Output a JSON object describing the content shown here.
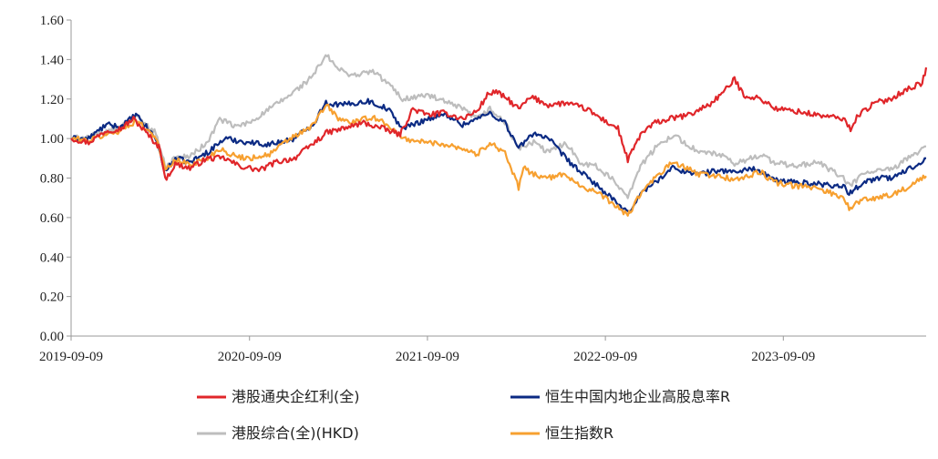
{
  "chart_data": {
    "type": "line",
    "title": "",
    "xlabel": "",
    "ylabel": "",
    "x_ticks": [
      "2019-09-09",
      "2020-09-09",
      "2021-09-09",
      "2022-09-09",
      "2023-09-09"
    ],
    "y_ticks": [
      "0.00",
      "0.20",
      "0.40",
      "0.60",
      "0.80",
      "1.00",
      "1.20",
      "1.40",
      "1.60"
    ],
    "xlim": [
      "2019-09-09",
      "2024-06-28"
    ],
    "ylim": [
      0,
      1.6
    ],
    "grid": false,
    "legend_position": "bottom",
    "series": [
      {
        "name": "港股通央企红利(全)",
        "color": "#e0262a",
        "points": [
          [
            "2019-09-09",
            1.0
          ],
          [
            "2019-10-15",
            0.98
          ],
          [
            "2019-11-20",
            1.04
          ],
          [
            "2019-12-20",
            1.05
          ],
          [
            "2020-01-15",
            1.1
          ],
          [
            "2020-02-10",
            1.03
          ],
          [
            "2020-03-10",
            0.95
          ],
          [
            "2020-03-20",
            0.79
          ],
          [
            "2020-04-10",
            0.87
          ],
          [
            "2020-05-10",
            0.85
          ],
          [
            "2020-06-15",
            0.9
          ],
          [
            "2020-07-20",
            0.9
          ],
          [
            "2020-08-20",
            0.86
          ],
          [
            "2020-10-01",
            0.84
          ],
          [
            "2020-11-01",
            0.88
          ],
          [
            "2020-12-10",
            0.9
          ],
          [
            "2021-01-10",
            0.96
          ],
          [
            "2021-02-15",
            1.03
          ],
          [
            "2021-03-20",
            1.05
          ],
          [
            "2021-05-01",
            1.08
          ],
          [
            "2021-06-10",
            1.05
          ],
          [
            "2021-07-15",
            1.02
          ],
          [
            "2021-08-10",
            1.15
          ],
          [
            "2021-09-09",
            1.12
          ],
          [
            "2021-10-15",
            1.13
          ],
          [
            "2021-11-20",
            1.1
          ],
          [
            "2021-12-20",
            1.14
          ],
          [
            "2022-01-10",
            1.22
          ],
          [
            "2022-01-25",
            1.24
          ],
          [
            "2022-02-20",
            1.2
          ],
          [
            "2022-03-15",
            1.15
          ],
          [
            "2022-04-10",
            1.21
          ],
          [
            "2022-05-15",
            1.17
          ],
          [
            "2022-06-20",
            1.18
          ],
          [
            "2022-08-01",
            1.15
          ],
          [
            "2022-09-01",
            1.1
          ],
          [
            "2022-10-05",
            1.05
          ],
          [
            "2022-10-25",
            0.89
          ],
          [
            "2022-11-20",
            1.02
          ],
          [
            "2022-12-20",
            1.08
          ],
          [
            "2023-01-20",
            1.1
          ],
          [
            "2023-03-01",
            1.12
          ],
          [
            "2023-04-15",
            1.18
          ],
          [
            "2023-05-15",
            1.25
          ],
          [
            "2023-06-01",
            1.3
          ],
          [
            "2023-06-20",
            1.22
          ],
          [
            "2023-07-25",
            1.2
          ],
          [
            "2023-08-25",
            1.15
          ],
          [
            "2023-10-01",
            1.14
          ],
          [
            "2023-11-15",
            1.12
          ],
          [
            "2024-01-10",
            1.1
          ],
          [
            "2024-01-25",
            1.05
          ],
          [
            "2024-02-10",
            1.12
          ],
          [
            "2024-03-15",
            1.18
          ],
          [
            "2024-04-15",
            1.2
          ],
          [
            "2024-05-20",
            1.25
          ],
          [
            "2024-06-20",
            1.28
          ],
          [
            "2024-06-28",
            1.36
          ]
        ]
      },
      {
        "name": "恒生中国内地企业高股息率R",
        "color": "#0b2a83",
        "points": [
          [
            "2019-09-09",
            1.0
          ],
          [
            "2019-10-15",
            1.0
          ],
          [
            "2019-11-20",
            1.07
          ],
          [
            "2019-12-20",
            1.06
          ],
          [
            "2020-01-20",
            1.12
          ],
          [
            "2020-02-10",
            1.06
          ],
          [
            "2020-03-01",
            1.0
          ],
          [
            "2020-03-20",
            0.83
          ],
          [
            "2020-04-10",
            0.9
          ],
          [
            "2020-05-10",
            0.88
          ],
          [
            "2020-06-15",
            0.93
          ],
          [
            "2020-07-20",
            1.0
          ],
          [
            "2020-09-09",
            0.98
          ],
          [
            "2020-10-20",
            0.97
          ],
          [
            "2020-12-10",
            1.0
          ],
          [
            "2021-01-20",
            1.08
          ],
          [
            "2021-02-10",
            1.18
          ],
          [
            "2021-03-20",
            1.17
          ],
          [
            "2021-05-10",
            1.19
          ],
          [
            "2021-06-20",
            1.15
          ],
          [
            "2021-07-20",
            1.05
          ],
          [
            "2021-09-09",
            1.1
          ],
          [
            "2021-10-20",
            1.12
          ],
          [
            "2021-11-20",
            1.07
          ],
          [
            "2021-12-20",
            1.1
          ],
          [
            "2022-01-15",
            1.13
          ],
          [
            "2022-02-15",
            1.08
          ],
          [
            "2022-03-15",
            0.95
          ],
          [
            "2022-04-15",
            1.03
          ],
          [
            "2022-05-15",
            1.0
          ],
          [
            "2022-06-20",
            0.9
          ],
          [
            "2022-07-20",
            0.83
          ],
          [
            "2022-08-20",
            0.77
          ],
          [
            "2022-09-20",
            0.7
          ],
          [
            "2022-10-25",
            0.62
          ],
          [
            "2022-11-20",
            0.72
          ],
          [
            "2022-12-20",
            0.78
          ],
          [
            "2023-01-25",
            0.85
          ],
          [
            "2023-03-20",
            0.82
          ],
          [
            "2023-05-01",
            0.84
          ],
          [
            "2023-06-01",
            0.83
          ],
          [
            "2023-07-10",
            0.85
          ],
          [
            "2023-08-20",
            0.79
          ],
          [
            "2023-10-01",
            0.78
          ],
          [
            "2023-11-20",
            0.77
          ],
          [
            "2024-01-10",
            0.76
          ],
          [
            "2024-01-22",
            0.72
          ],
          [
            "2024-02-20",
            0.78
          ],
          [
            "2024-03-20",
            0.8
          ],
          [
            "2024-04-20",
            0.8
          ],
          [
            "2024-05-20",
            0.84
          ],
          [
            "2024-06-28",
            0.9
          ]
        ]
      },
      {
        "name": "港股综合(全)(HKD)",
        "color": "#bdbdbd",
        "points": [
          [
            "2019-09-09",
            1.0
          ],
          [
            "2019-10-15",
            1.01
          ],
          [
            "2019-11-20",
            1.03
          ],
          [
            "2019-12-20",
            1.06
          ],
          [
            "2020-01-20",
            1.11
          ],
          [
            "2020-02-10",
            1.07
          ],
          [
            "2020-03-01",
            1.03
          ],
          [
            "2020-03-20",
            0.86
          ],
          [
            "2020-04-10",
            0.9
          ],
          [
            "2020-05-10",
            0.91
          ],
          [
            "2020-06-15",
            0.98
          ],
          [
            "2020-07-10",
            1.1
          ],
          [
            "2020-08-10",
            1.06
          ],
          [
            "2020-09-09",
            1.08
          ],
          [
            "2020-10-20",
            1.15
          ],
          [
            "2020-12-01",
            1.22
          ],
          [
            "2021-01-10",
            1.3
          ],
          [
            "2021-02-15",
            1.42
          ],
          [
            "2021-03-10",
            1.35
          ],
          [
            "2021-04-10",
            1.32
          ],
          [
            "2021-05-20",
            1.34
          ],
          [
            "2021-06-20",
            1.28
          ],
          [
            "2021-07-20",
            1.2
          ],
          [
            "2021-09-09",
            1.22
          ],
          [
            "2021-10-20",
            1.18
          ],
          [
            "2021-11-20",
            1.15
          ],
          [
            "2021-12-20",
            1.1
          ],
          [
            "2022-01-15",
            1.15
          ],
          [
            "2022-02-15",
            1.08
          ],
          [
            "2022-03-15",
            0.95
          ],
          [
            "2022-04-15",
            0.98
          ],
          [
            "2022-05-15",
            0.93
          ],
          [
            "2022-06-20",
            0.98
          ],
          [
            "2022-07-20",
            0.88
          ],
          [
            "2022-08-20",
            0.86
          ],
          [
            "2022-09-20",
            0.8
          ],
          [
            "2022-10-25",
            0.71
          ],
          [
            "2022-11-20",
            0.86
          ],
          [
            "2022-12-20",
            0.95
          ],
          [
            "2023-01-25",
            1.02
          ],
          [
            "2023-03-20",
            0.93
          ],
          [
            "2023-05-01",
            0.92
          ],
          [
            "2023-06-01",
            0.87
          ],
          [
            "2023-07-25",
            0.92
          ],
          [
            "2023-08-20",
            0.88
          ],
          [
            "2023-10-01",
            0.86
          ],
          [
            "2023-11-20",
            0.88
          ],
          [
            "2024-01-10",
            0.8
          ],
          [
            "2024-01-22",
            0.76
          ],
          [
            "2024-02-20",
            0.82
          ],
          [
            "2024-03-20",
            0.84
          ],
          [
            "2024-04-20",
            0.84
          ],
          [
            "2024-05-20",
            0.9
          ],
          [
            "2024-06-28",
            0.96
          ]
        ]
      },
      {
        "name": "恒生指数R",
        "color": "#f7a030",
        "points": [
          [
            "2019-09-09",
            1.0
          ],
          [
            "2019-10-15",
            0.99
          ],
          [
            "2019-11-20",
            1.02
          ],
          [
            "2019-12-20",
            1.04
          ],
          [
            "2020-01-20",
            1.09
          ],
          [
            "2020-02-10",
            1.05
          ],
          [
            "2020-03-01",
            1.01
          ],
          [
            "2020-03-20",
            0.84
          ],
          [
            "2020-04-10",
            0.89
          ],
          [
            "2020-05-10",
            0.87
          ],
          [
            "2020-06-15",
            0.9
          ],
          [
            "2020-07-10",
            0.95
          ],
          [
            "2020-08-10",
            0.91
          ],
          [
            "2020-09-09",
            0.9
          ],
          [
            "2020-10-20",
            0.92
          ],
          [
            "2020-12-01",
            1.0
          ],
          [
            "2021-01-10",
            1.05
          ],
          [
            "2021-02-15",
            1.17
          ],
          [
            "2021-03-10",
            1.1
          ],
          [
            "2021-04-10",
            1.08
          ],
          [
            "2021-05-20",
            1.11
          ],
          [
            "2021-06-20",
            1.07
          ],
          [
            "2021-07-20",
            1.0
          ],
          [
            "2021-09-09",
            0.98
          ],
          [
            "2021-10-20",
            0.97
          ],
          [
            "2021-11-20",
            0.95
          ],
          [
            "2021-12-20",
            0.92
          ],
          [
            "2022-01-15",
            0.98
          ],
          [
            "2022-02-15",
            0.93
          ],
          [
            "2022-03-15",
            0.75
          ],
          [
            "2022-03-25",
            0.85
          ],
          [
            "2022-04-15",
            0.82
          ],
          [
            "2022-05-15",
            0.8
          ],
          [
            "2022-06-20",
            0.82
          ],
          [
            "2022-07-20",
            0.76
          ],
          [
            "2022-08-20",
            0.73
          ],
          [
            "2022-09-20",
            0.68
          ],
          [
            "2022-10-25",
            0.61
          ],
          [
            "2022-11-20",
            0.72
          ],
          [
            "2022-12-20",
            0.8
          ],
          [
            "2023-01-25",
            0.88
          ],
          [
            "2023-03-20",
            0.82
          ],
          [
            "2023-05-01",
            0.81
          ],
          [
            "2023-06-01",
            0.79
          ],
          [
            "2023-07-25",
            0.83
          ],
          [
            "2023-08-20",
            0.78
          ],
          [
            "2023-10-01",
            0.76
          ],
          [
            "2023-11-20",
            0.75
          ],
          [
            "2024-01-10",
            0.7
          ],
          [
            "2024-01-22",
            0.65
          ],
          [
            "2024-02-20",
            0.69
          ],
          [
            "2024-03-20",
            0.7
          ],
          [
            "2024-04-20",
            0.72
          ],
          [
            "2024-05-20",
            0.75
          ],
          [
            "2024-06-28",
            0.81
          ]
        ]
      }
    ]
  }
}
